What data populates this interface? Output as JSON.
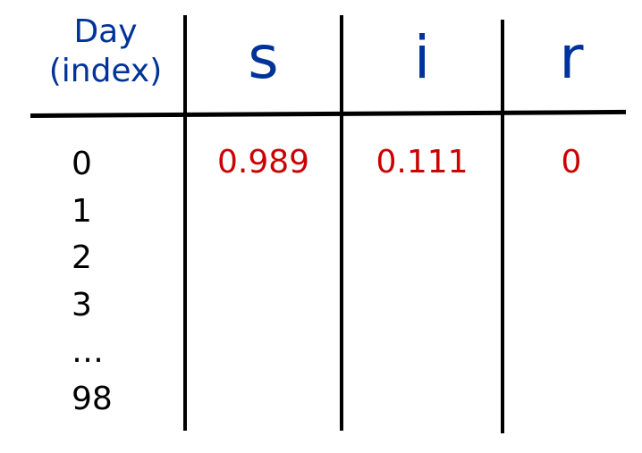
{
  "table": {
    "day_header": [
      "Day",
      "(index)"
    ],
    "columns": [
      "s",
      "i",
      "r"
    ],
    "days": [
      "0",
      "1",
      "2",
      "3",
      "…",
      "98"
    ],
    "row0_values": {
      "s": "0.989",
      "i": "0.111",
      "r": "0"
    }
  },
  "colors": {
    "header_text": "#003399",
    "value_text": "#cc0000",
    "day_text": "#000000",
    "rules": "#000000"
  }
}
